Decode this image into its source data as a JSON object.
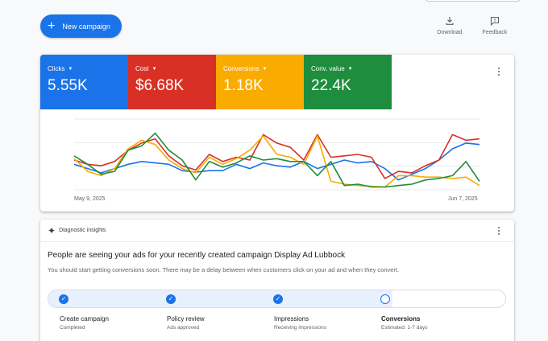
{
  "header": {
    "new_campaign": "New campaign",
    "actions": [
      {
        "label": "Download",
        "icon": "download-icon"
      },
      {
        "label": "Feedback",
        "icon": "feedback-icon"
      }
    ]
  },
  "metrics": [
    {
      "name": "Clicks",
      "value": "5.55K",
      "color": "#1a73e8"
    },
    {
      "name": "Cost",
      "value": "$6.68K",
      "color": "#d93025"
    },
    {
      "name": "Conversions",
      "value": "1.18K",
      "color": "#f9ab00"
    },
    {
      "name": "Conv. value",
      "value": "22.4K",
      "color": "#1e8e3e"
    }
  ],
  "chart_data": {
    "type": "line",
    "x_start": "May 9, 2025",
    "x_end": "Jun 7, 2025",
    "grid": true,
    "series": [
      {
        "name": "Clicks",
        "color": "#1a73e8",
        "values": [
          0.36,
          0.3,
          0.24,
          0.3,
          0.36,
          0.4,
          0.38,
          0.36,
          0.27,
          0.25,
          0.27,
          0.27,
          0.36,
          0.3,
          0.38,
          0.34,
          0.32,
          0.4,
          0.3,
          0.36,
          0.42,
          0.38,
          0.4,
          0.3,
          0.14,
          0.22,
          0.3,
          0.42,
          0.58,
          0.66,
          0.64
        ]
      },
      {
        "name": "Cost",
        "color": "#d93025",
        "values": [
          0.42,
          0.36,
          0.34,
          0.4,
          0.56,
          0.66,
          0.72,
          0.48,
          0.34,
          0.28,
          0.5,
          0.4,
          0.46,
          0.42,
          0.78,
          0.66,
          0.6,
          0.42,
          0.78,
          0.46,
          0.48,
          0.5,
          0.46,
          0.16,
          0.26,
          0.24,
          0.34,
          0.42,
          0.78,
          0.7,
          0.72
        ]
      },
      {
        "name": "Conversions",
        "color": "#f9ab00",
        "values": [
          0.44,
          0.26,
          0.2,
          0.3,
          0.58,
          0.7,
          0.64,
          0.42,
          0.3,
          0.24,
          0.46,
          0.36,
          0.44,
          0.56,
          0.76,
          0.5,
          0.46,
          0.36,
          0.76,
          0.12,
          0.08,
          0.06,
          0.05,
          0.04,
          0.2,
          0.2,
          0.18,
          0.18,
          0.16,
          0.18,
          0.06
        ]
      },
      {
        "name": "Conv. value",
        "color": "#1e8e3e",
        "values": [
          0.48,
          0.36,
          0.22,
          0.26,
          0.56,
          0.62,
          0.8,
          0.56,
          0.42,
          0.14,
          0.4,
          0.32,
          0.38,
          0.48,
          0.42,
          0.44,
          0.4,
          0.4,
          0.2,
          0.4,
          0.06,
          0.08,
          0.04,
          0.04,
          0.06,
          0.08,
          0.14,
          0.16,
          0.2,
          0.4,
          0.12
        ]
      }
    ]
  },
  "insights": {
    "header": "Diagnostic insights",
    "title": "People are seeing your ads for your recently created campaign Display Ad Lubbock",
    "description": "You should start getting conversions soon. There may be a delay between when customers click on your ad and when they convert.",
    "progress": 0.75,
    "steps": [
      {
        "title": "Create campaign",
        "status": "Completed",
        "done": true
      },
      {
        "title": "Policy review",
        "status": "Ads approved",
        "done": true
      },
      {
        "title": "Impressions",
        "status": "Receiving impressions",
        "done": true
      },
      {
        "title": "Conversions",
        "status": "Estimated: 1-7 days",
        "done": false
      }
    ]
  }
}
